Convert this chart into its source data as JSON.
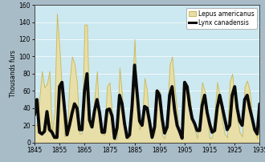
{
  "years": [
    1845,
    1846,
    1847,
    1848,
    1849,
    1850,
    1851,
    1852,
    1853,
    1854,
    1855,
    1856,
    1857,
    1858,
    1859,
    1860,
    1861,
    1862,
    1863,
    1864,
    1865,
    1866,
    1867,
    1868,
    1869,
    1870,
    1871,
    1872,
    1873,
    1874,
    1875,
    1876,
    1877,
    1878,
    1879,
    1880,
    1881,
    1882,
    1883,
    1884,
    1885,
    1886,
    1887,
    1888,
    1889,
    1890,
    1891,
    1892,
    1893,
    1894,
    1895,
    1896,
    1897,
    1898,
    1899,
    1900,
    1901,
    1902,
    1903,
    1904,
    1905,
    1906,
    1907,
    1908,
    1909,
    1910,
    1911,
    1912,
    1913,
    1914,
    1915,
    1916,
    1917,
    1918,
    1919,
    1920,
    1921,
    1922,
    1923,
    1924,
    1925,
    1926,
    1927,
    1928,
    1929,
    1930,
    1931,
    1932,
    1933,
    1934,
    1935
  ],
  "hare": [
    20,
    20,
    52,
    83,
    64,
    68,
    83,
    12,
    36,
    150,
    110,
    60,
    7,
    10,
    70,
    100,
    92,
    70,
    10,
    11,
    137,
    137,
    18,
    22,
    52,
    83,
    18,
    10,
    9,
    65,
    70,
    34,
    3,
    4,
    87,
    55,
    15,
    5,
    5,
    60,
    120,
    45,
    15,
    25,
    75,
    60,
    14,
    5,
    10,
    60,
    60,
    8,
    5,
    23,
    90,
    100,
    65,
    35,
    8,
    5,
    70,
    65,
    55,
    30,
    15,
    5,
    35,
    70,
    60,
    30,
    5,
    6,
    35,
    70,
    55,
    25,
    10,
    6,
    70,
    80,
    55,
    28,
    12,
    7,
    65,
    72,
    60,
    30,
    15,
    5,
    55
  ],
  "lynx": [
    32,
    50,
    12,
    10,
    13,
    36,
    15,
    12,
    6,
    6,
    65,
    70,
    40,
    9,
    20,
    34,
    45,
    40,
    15,
    15,
    60,
    80,
    26,
    18,
    37,
    50,
    35,
    12,
    12,
    38,
    39,
    31,
    5,
    17,
    55,
    45,
    22,
    6,
    9,
    42,
    90,
    58,
    25,
    20,
    42,
    40,
    24,
    6,
    18,
    60,
    55,
    28,
    11,
    18,
    55,
    65,
    38,
    20,
    13,
    5,
    70,
    65,
    43,
    28,
    22,
    14,
    14,
    43,
    55,
    35,
    22,
    12,
    14,
    40,
    55,
    42,
    28,
    15,
    20,
    55,
    65,
    40,
    25,
    20,
    50,
    55,
    40,
    28,
    15,
    10,
    45
  ],
  "hare_color": "#e8dea8",
  "hare_edge_color": "#c8b850",
  "lynx_color": "#0a0a0a",
  "bg_color": "#cce8f0",
  "outer_bg": "#a8bcc8",
  "ylabel": "Thousands furs",
  "ylim": [
    0,
    160
  ],
  "yticks": [
    0,
    20,
    40,
    60,
    80,
    100,
    120,
    140,
    160
  ],
  "xticks": [
    1845,
    1855,
    1865,
    1875,
    1885,
    1895,
    1905,
    1915,
    1925,
    1935
  ],
  "legend_hare": "Lepus americanus",
  "legend_lynx": "Lynx canadensis",
  "lynx_linewidth": 2.8
}
